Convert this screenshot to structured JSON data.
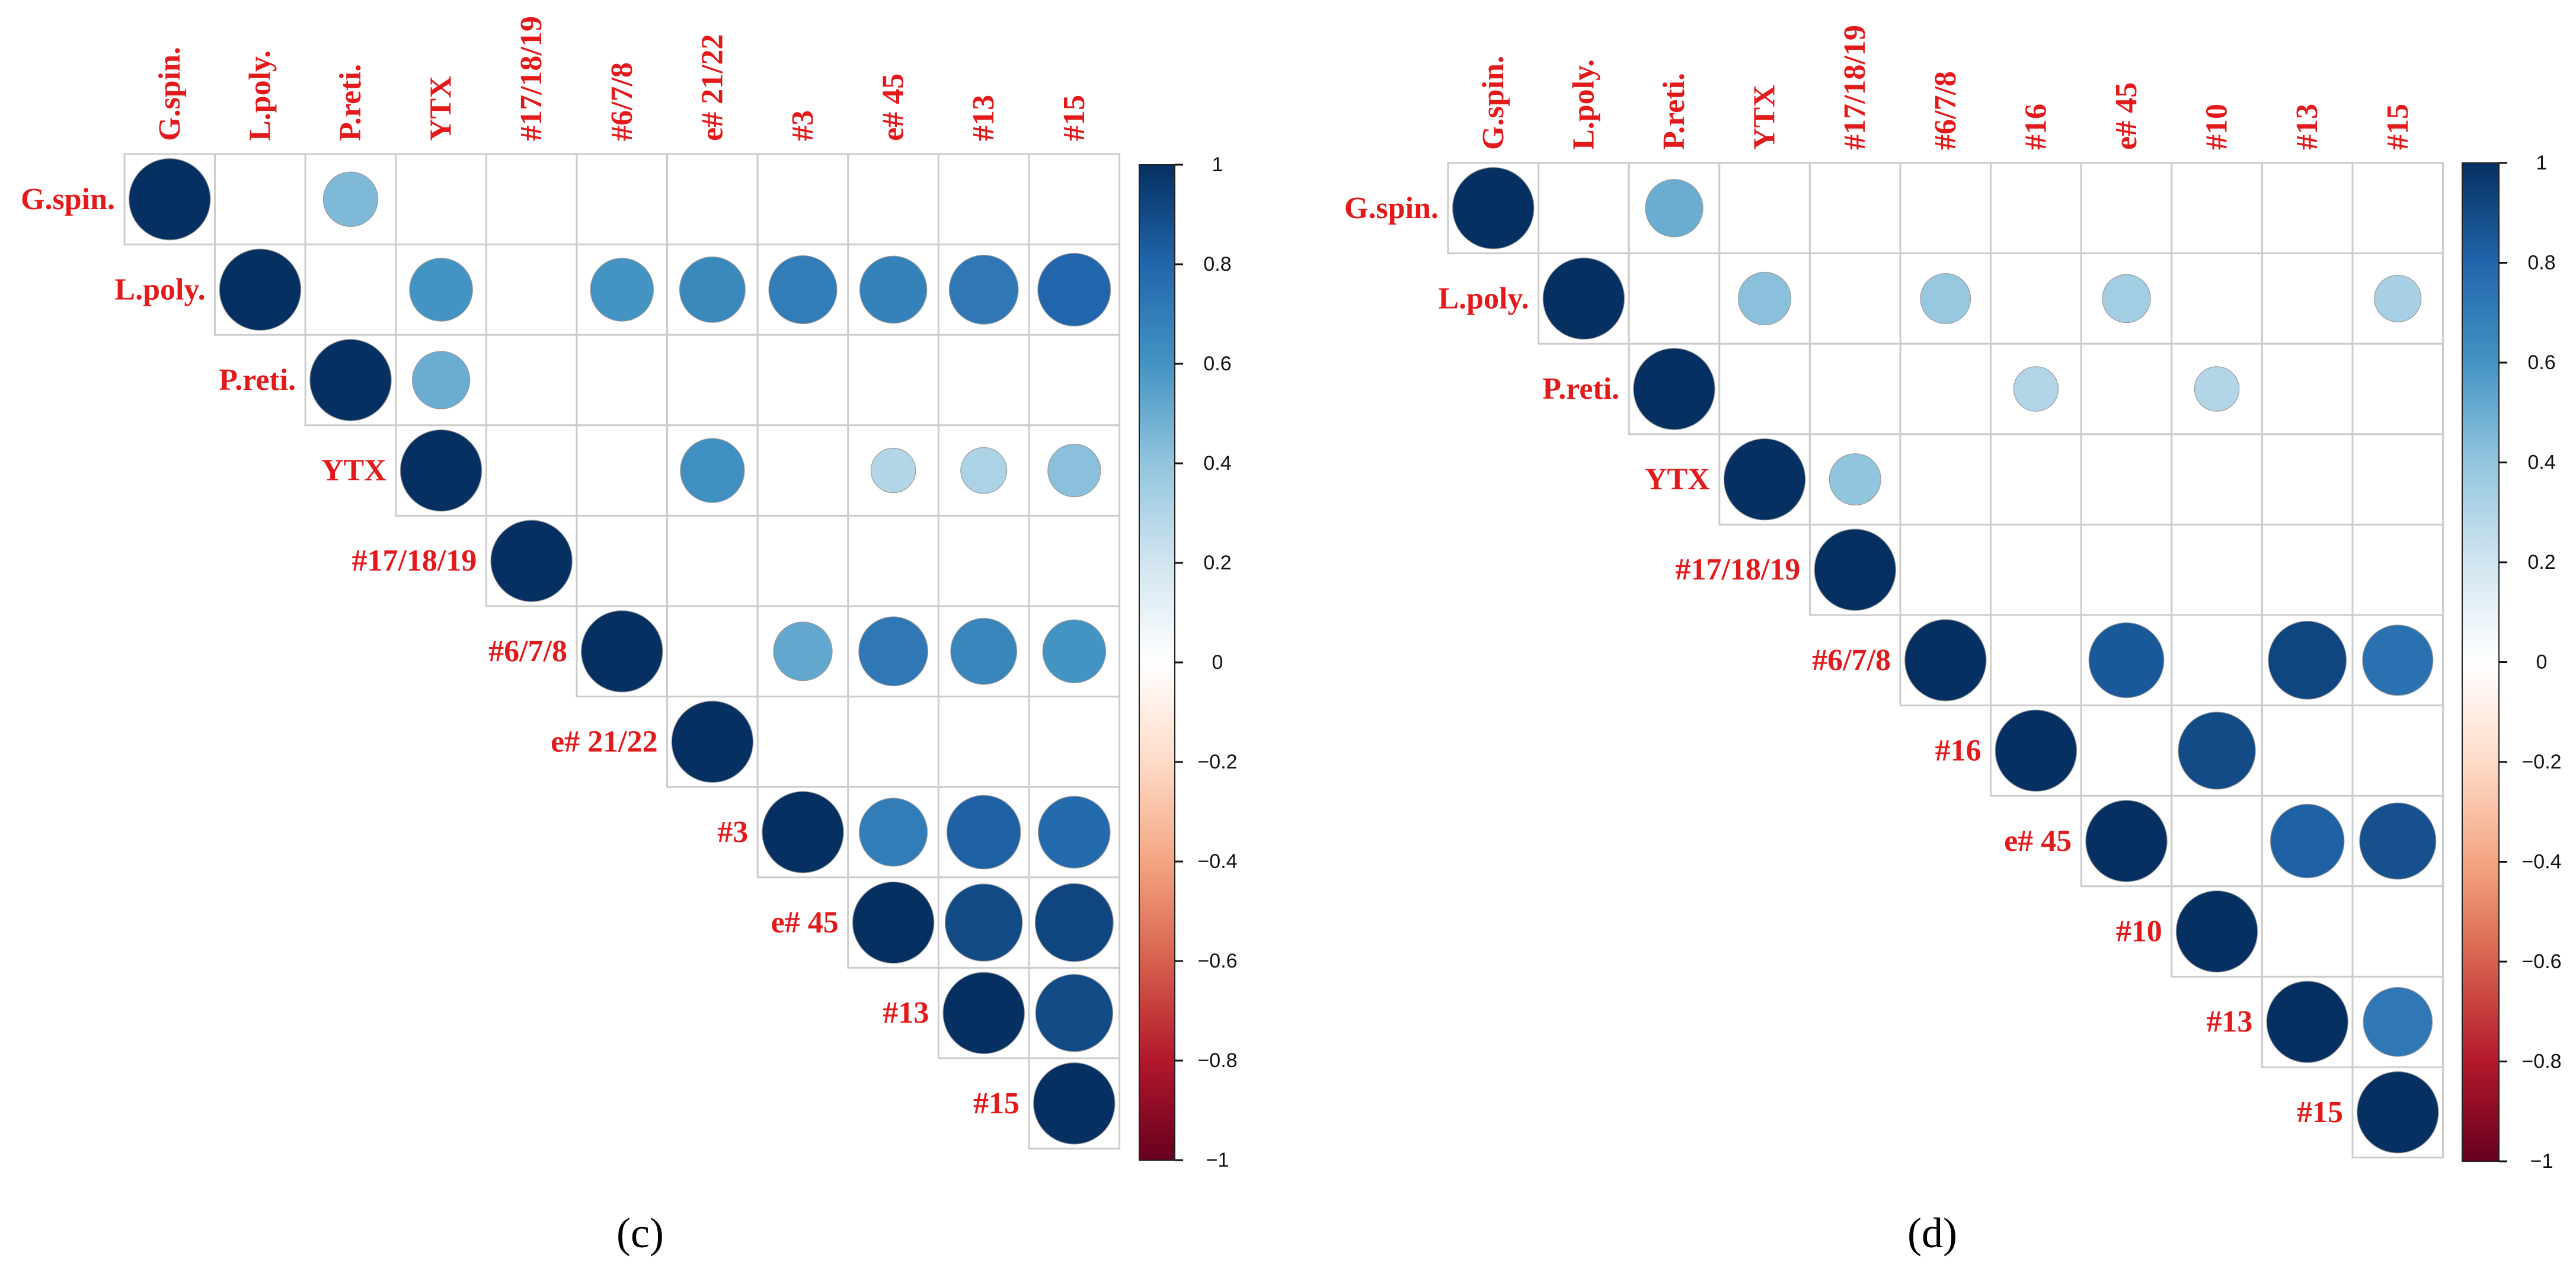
{
  "chart_data": [
    {
      "type": "heatmap",
      "subtype": "corrplot-upper-circle",
      "panel_label": "(c)",
      "variables": [
        "G.spin.",
        "L.poly.",
        "P.reti.",
        "YTX",
        "#17/18/19",
        "#6/7/8",
        "e# 21/22",
        "#3",
        "e# 45",
        "#13",
        "#15"
      ],
      "color_range": [
        -1,
        1
      ],
      "colorbar_ticks": [
        "1",
        "0.8",
        "0.6",
        "0.4",
        "0.2",
        "0",
        "−0.2",
        "−0.4",
        "−0.6",
        "−0.8",
        "−1"
      ],
      "correlations": [
        {
          "row": "G.spin.",
          "col": "P.reti.",
          "value": 0.45
        },
        {
          "row": "L.poly.",
          "col": "YTX",
          "value": 0.6
        },
        {
          "row": "L.poly.",
          "col": "#6/7/8",
          "value": 0.6
        },
        {
          "row": "L.poly.",
          "col": "e# 21/22",
          "value": 0.65
        },
        {
          "row": "L.poly.",
          "col": "#3",
          "value": 0.7
        },
        {
          "row": "L.poly.",
          "col": "e# 45",
          "value": 0.68
        },
        {
          "row": "L.poly.",
          "col": "#13",
          "value": 0.72
        },
        {
          "row": "L.poly.",
          "col": "#15",
          "value": 0.8
        },
        {
          "row": "P.reti.",
          "col": "YTX",
          "value": 0.5
        },
        {
          "row": "YTX",
          "col": "e# 21/22",
          "value": 0.62
        },
        {
          "row": "YTX",
          "col": "e# 45",
          "value": 0.3
        },
        {
          "row": "YTX",
          "col": "#13",
          "value": 0.32
        },
        {
          "row": "YTX",
          "col": "#15",
          "value": 0.42
        },
        {
          "row": "#6/7/8",
          "col": "#3",
          "value": 0.52
        },
        {
          "row": "#6/7/8",
          "col": "e# 45",
          "value": 0.72
        },
        {
          "row": "#6/7/8",
          "col": "#13",
          "value": 0.66
        },
        {
          "row": "#6/7/8",
          "col": "#15",
          "value": 0.6
        },
        {
          "row": "#3",
          "col": "e# 45",
          "value": 0.7
        },
        {
          "row": "#3",
          "col": "#13",
          "value": 0.82
        },
        {
          "row": "#3",
          "col": "#15",
          "value": 0.78
        },
        {
          "row": "e# 45",
          "col": "#13",
          "value": 0.9
        },
        {
          "row": "e# 45",
          "col": "#15",
          "value": 0.92
        },
        {
          "row": "#13",
          "col": "#15",
          "value": 0.9
        }
      ]
    },
    {
      "type": "heatmap",
      "subtype": "corrplot-upper-circle",
      "panel_label": "(d)",
      "variables": [
        "G.spin.",
        "L.poly.",
        "P.reti.",
        "YTX",
        "#17/18/19",
        "#6/7/8",
        "#16",
        "e# 45",
        "#10",
        "#13",
        "#15"
      ],
      "color_range": [
        -1,
        1
      ],
      "colorbar_ticks": [
        "1",
        "0.8",
        "0.6",
        "0.4",
        "0.2",
        "0",
        "−0.2",
        "−0.4",
        "−0.6",
        "−0.8",
        "−1"
      ],
      "correlations": [
        {
          "row": "G.spin.",
          "col": "P.reti.",
          "value": 0.5
        },
        {
          "row": "L.poly.",
          "col": "YTX",
          "value": 0.42
        },
        {
          "row": "L.poly.",
          "col": "#6/7/8",
          "value": 0.38
        },
        {
          "row": "L.poly.",
          "col": "e# 45",
          "value": 0.35
        },
        {
          "row": "L.poly.",
          "col": "#15",
          "value": 0.33
        },
        {
          "row": "P.reti.",
          "col": "#16",
          "value": 0.3
        },
        {
          "row": "P.reti.",
          "col": "#10",
          "value": 0.3
        },
        {
          "row": "YTX",
          "col": "#17/18/19",
          "value": 0.4
        },
        {
          "row": "#6/7/8",
          "col": "e# 45",
          "value": 0.85
        },
        {
          "row": "#6/7/8",
          "col": "#13",
          "value": 0.92
        },
        {
          "row": "#6/7/8",
          "col": "#15",
          "value": 0.75
        },
        {
          "row": "#16",
          "col": "#10",
          "value": 0.9
        },
        {
          "row": "e# 45",
          "col": "#13",
          "value": 0.82
        },
        {
          "row": "e# 45",
          "col": "#15",
          "value": 0.88
        },
        {
          "row": "#13",
          "col": "#15",
          "value": 0.72
        }
      ]
    }
  ]
}
